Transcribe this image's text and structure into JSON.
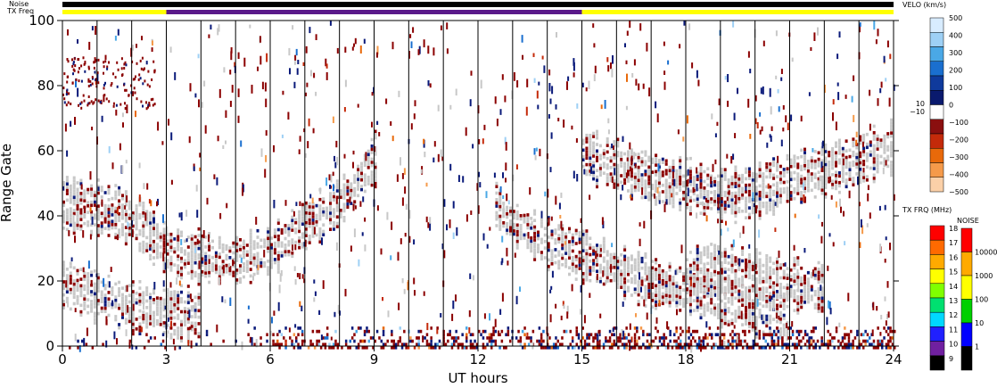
{
  "chart_data": {
    "type": "heatmap",
    "title": "",
    "xlabel": "UT hours",
    "ylabel": "Range Gate",
    "xlim": [
      0,
      24
    ],
    "ylim": [
      0,
      100
    ],
    "x_ticks": [
      "0",
      "3",
      "6",
      "9",
      "12",
      "15",
      "18",
      "21",
      "24"
    ],
    "y_ticks": [
      "0",
      "20",
      "40",
      "60",
      "80",
      "100"
    ],
    "top_bars": {
      "noise_label": "Noise",
      "txfreq_label": "TX Freq",
      "txfreq_segments": [
        {
          "start": 0,
          "end": 3,
          "color": "#ffff00"
        },
        {
          "start": 3,
          "end": 15,
          "color": "#5a1a8a"
        },
        {
          "start": 15,
          "end": 24,
          "color": "#ffff00"
        }
      ]
    },
    "velocity_scale": {
      "title": "VELO (km/s)",
      "labels": [
        "500",
        "400",
        "300",
        "200",
        "100",
        "0",
        "−100",
        "−200",
        "−300",
        "−400",
        "−500"
      ],
      "small_labels": [
        "10",
        "−10"
      ],
      "colors": [
        "#d8ecff",
        "#9ed0f5",
        "#4aa8e6",
        "#1a6fcf",
        "#0f3a9c",
        "#0a1a6e",
        "#ffffff",
        "#8a0f0f",
        "#c42a0a",
        "#e8690a",
        "#f59a4a",
        "#fbd0a8"
      ]
    },
    "txfreq_scale": {
      "title": "TX FRQ (MHz)",
      "labels": [
        "18",
        "17",
        "16",
        "15",
        "14",
        "13",
        "12",
        "11",
        "10",
        "9"
      ],
      "colors": [
        "#ff0000",
        "#ff6a00",
        "#ffaa00",
        "#ffff00",
        "#80ff00",
        "#00e070",
        "#00d8ff",
        "#2020ff",
        "#7020a0",
        "#000000"
      ]
    },
    "noise_scale": {
      "title": "NOISE",
      "labels": [
        "10000",
        "1000",
        "100",
        "10",
        "1"
      ],
      "colors": [
        "#ff0000",
        "#ffaa00",
        "#ffff00",
        "#00d000",
        "#0000ff",
        "#000000"
      ]
    },
    "scan_boundaries_ut": [
      1.0,
      2.0,
      3.0,
      4.0,
      5.0,
      6.0,
      7.0,
      8.0,
      9.0,
      10.0,
      11.0,
      12.0,
      13.0,
      14.0,
      15.0,
      16.0,
      17.0,
      18.0,
      19.0,
      20.0,
      21.0,
      22.0,
      23.0
    ],
    "features": {
      "ground_scatter_color": "#c8c8c8",
      "negative_velocity_color": "#8b0000",
      "positive_velocity_color": "#0a1a7a",
      "ground_scatter_bands": [
        {
          "points": [
            [
              0,
              44
            ],
            [
              1,
              43
            ],
            [
              2,
              40
            ],
            [
              3,
              30
            ],
            [
              4,
              28
            ],
            [
              5,
              27
            ],
            [
              6,
              30
            ],
            [
              7,
              38
            ],
            [
              8,
              45
            ],
            [
              9,
              58
            ]
          ]
        },
        {
          "points": [
            [
              0,
              20
            ],
            [
              1,
              16
            ],
            [
              2,
              13
            ],
            [
              3,
              11
            ],
            [
              4,
              10
            ]
          ]
        },
        {
          "points": [
            [
              15,
              60
            ],
            [
              16,
              56
            ],
            [
              17,
              52
            ],
            [
              18,
              50
            ],
            [
              19,
              47
            ],
            [
              20,
              48
            ],
            [
              21,
              52
            ],
            [
              22,
              55
            ],
            [
              23,
              58
            ],
            [
              24,
              62
            ]
          ]
        },
        {
          "points": [
            [
              12.5,
              44
            ],
            [
              13,
              38
            ],
            [
              14,
              32
            ],
            [
              15,
              28
            ],
            [
              16,
              24
            ],
            [
              17,
              20
            ],
            [
              18,
              18
            ],
            [
              19,
              15
            ],
            [
              20,
              12
            ],
            [
              21,
              10
            ]
          ]
        },
        {
          "points": [
            [
              18,
              23
            ],
            [
              19,
              24
            ],
            [
              20,
              22
            ],
            [
              21,
              20
            ],
            [
              22,
              18
            ]
          ]
        }
      ]
    }
  }
}
